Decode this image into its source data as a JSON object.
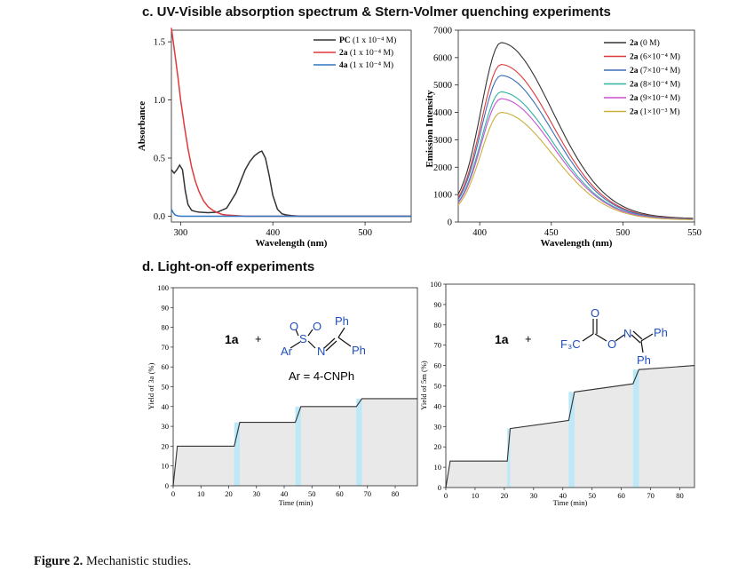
{
  "figure": {
    "section_c_title": "c. UV-Visible absorption spectrum & Stern-Volmer quenching experiments",
    "section_d_title": "d. Light-on-off experiments",
    "caption_label": "Figure 2.",
    "caption_text": " Mechanistic studies."
  },
  "chart_data": [
    {
      "id": "uv-vis",
      "type": "line",
      "xlabel": "Wavelength (nm)",
      "ylabel": "Absorbance",
      "xlim": [
        290,
        550
      ],
      "ylim": [
        -0.05,
        1.6
      ],
      "xticks": [
        300,
        400,
        500
      ],
      "yticks": [
        0.0,
        0.5,
        1.0,
        1.5
      ],
      "ytick_labels": [
        "0.0",
        "0.5",
        "1.0",
        "1.5"
      ],
      "series": [
        {
          "name": "PC (1 x 10⁻⁴ M)",
          "color": "#333333",
          "x": [
            290,
            293,
            296,
            299,
            302,
            305,
            308,
            312,
            316,
            320,
            330,
            340,
            350,
            360,
            365,
            370,
            375,
            380,
            385,
            388,
            392,
            396,
            400,
            405,
            410,
            415,
            420,
            430,
            450,
            500,
            550
          ],
          "y": [
            0.4,
            0.37,
            0.4,
            0.44,
            0.4,
            0.22,
            0.1,
            0.05,
            0.04,
            0.035,
            0.03,
            0.035,
            0.07,
            0.2,
            0.3,
            0.4,
            0.47,
            0.52,
            0.55,
            0.56,
            0.5,
            0.35,
            0.18,
            0.06,
            0.02,
            0.01,
            0.005,
            0.0,
            0.0,
            0.0,
            0.0
          ]
        },
        {
          "name": "2a (1 x 10⁻⁴ M)",
          "color": "#e0393b",
          "x": [
            290,
            292,
            294,
            297,
            300,
            304,
            308,
            312,
            316,
            320,
            325,
            330,
            335,
            340,
            345,
            350,
            360,
            370,
            400,
            450,
            500,
            550
          ],
          "y": [
            1.62,
            1.5,
            1.38,
            1.2,
            1.0,
            0.78,
            0.58,
            0.42,
            0.3,
            0.21,
            0.13,
            0.08,
            0.05,
            0.03,
            0.015,
            0.01,
            0.005,
            0.0,
            0.0,
            0.0,
            0.0,
            0.0
          ]
        },
        {
          "name": "4a (1 x 10⁻⁴ M)",
          "color": "#2f77c2",
          "x": [
            290,
            292,
            294,
            297,
            300,
            320,
            350,
            400,
            450,
            500,
            550
          ],
          "y": [
            0.06,
            0.03,
            0.01,
            0.003,
            0.0,
            0.0,
            0.0,
            0.0,
            0.0,
            0.0,
            0.0
          ]
        }
      ]
    },
    {
      "id": "stern-volmer",
      "type": "line",
      "xlabel": "Wavelength (nm)",
      "ylabel": "Emission Intensity",
      "xlim": [
        385,
        550
      ],
      "ylim": [
        0,
        7000
      ],
      "xticks": [
        400,
        450,
        500,
        550
      ],
      "yticks": [
        0,
        1000,
        2000,
        3000,
        4000,
        5000,
        6000,
        7000
      ],
      "peak_x": 415,
      "series": [
        {
          "name_bold": "2a",
          "name_rest": " (0 M)",
          "color": "#333333",
          "peak": 6550
        },
        {
          "name_bold": "2a",
          "name_rest": " (6×10⁻⁴ M)",
          "color": "#e0393b",
          "peak": 5750
        },
        {
          "name_bold": "2a",
          "name_rest": " (7×10⁻⁴ M)",
          "color": "#3b6fb7",
          "peak": 5350
        },
        {
          "name_bold": "2a",
          "name_rest": " (8×10⁻⁴ M)",
          "color": "#2fb3a0",
          "peak": 4750
        },
        {
          "name_bold": "2a",
          "name_rest": " (9×10⁻⁴ M)",
          "color": "#c94fd1",
          "peak": 4500
        },
        {
          "name_bold": "2a",
          "name_rest": " (1×10⁻³ M)",
          "color": "#c7b13d",
          "peak": 4000
        }
      ]
    },
    {
      "id": "light-on-off-3a",
      "type": "area",
      "xlabel": "Time (min)",
      "ylabel": "Yield of 3a (%)",
      "xlim": [
        0,
        88
      ],
      "ylim": [
        0,
        100
      ],
      "xticks": [
        0,
        10,
        20,
        30,
        40,
        50,
        60,
        70,
        80
      ],
      "yticks": [
        0,
        10,
        20,
        30,
        40,
        50,
        60,
        70,
        80,
        90,
        100
      ],
      "light_on_min": [
        [
          22,
          24
        ],
        [
          44,
          46
        ],
        [
          66,
          68
        ]
      ],
      "x": [
        0,
        1.5,
        22,
        24,
        44,
        46,
        66,
        68,
        88
      ],
      "y": [
        0,
        20,
        20,
        32,
        32,
        40,
        40,
        44,
        44
      ],
      "scheme": {
        "reactant": "1a",
        "plus": "+",
        "substituent": "Ar = 4-CNPh",
        "labels": [
          "Ar",
          "S",
          "O",
          "O",
          "N",
          "Ph",
          "Ph"
        ]
      }
    },
    {
      "id": "light-on-off-5m",
      "type": "area",
      "xlabel": "Time (min)",
      "ylabel": "Yield of 5m (%)",
      "xlim": [
        0,
        85
      ],
      "ylim": [
        0,
        100
      ],
      "xticks": [
        0,
        10,
        20,
        30,
        40,
        50,
        60,
        70,
        80
      ],
      "yticks": [
        0,
        10,
        20,
        30,
        40,
        50,
        60,
        70,
        80,
        90,
        100
      ],
      "light_on_min": [
        [
          21,
          22
        ],
        [
          42,
          44
        ],
        [
          64,
          66
        ]
      ],
      "x": [
        0,
        1.5,
        21,
        22,
        42,
        44,
        64,
        66,
        85
      ],
      "y": [
        0,
        13,
        13,
        29,
        33,
        47,
        51,
        58,
        60
      ],
      "scheme": {
        "reactant": "1a",
        "plus": "+",
        "labels": [
          "O",
          "F₃C",
          "O",
          "N",
          "Ph",
          "Ph"
        ]
      }
    }
  ]
}
